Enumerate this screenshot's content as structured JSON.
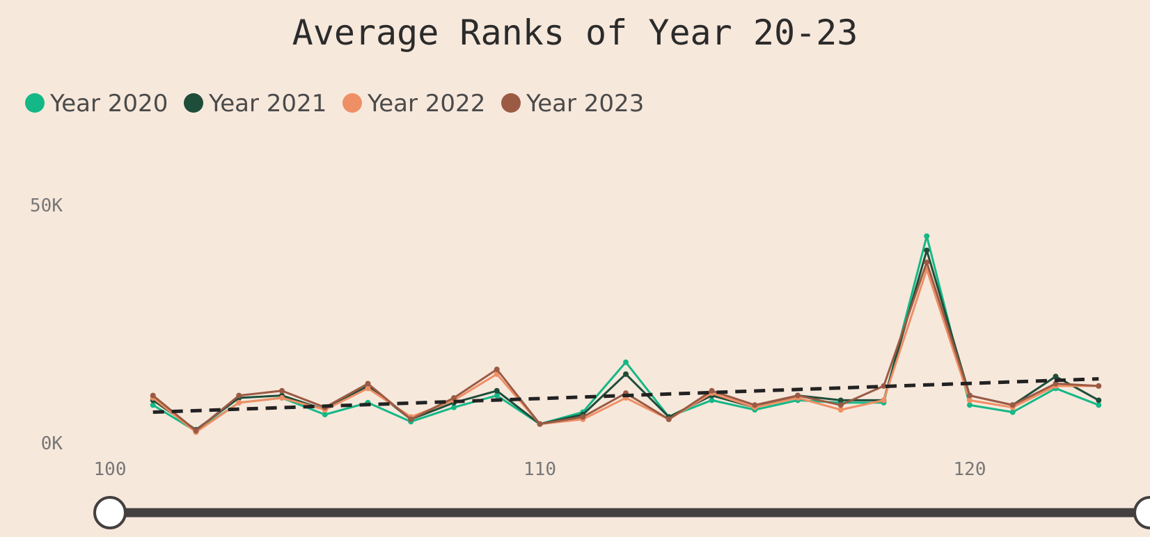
{
  "chart_data": {
    "type": "line",
    "title": "Average Ranks of Year 20-23",
    "xlabel": "",
    "ylabel": "",
    "legend_position": "top-left",
    "grid": false,
    "xlim": [
      100,
      124
    ],
    "ylim": [
      0,
      50000
    ],
    "x_ticks": [
      100,
      110,
      120
    ],
    "x_tick_labels": [
      "100",
      "110",
      "120"
    ],
    "y_ticks": [
      0,
      50000
    ],
    "y_tick_labels": [
      "0K",
      "50K"
    ],
    "x": [
      101,
      102,
      103,
      104,
      105,
      106,
      107,
      108,
      109,
      110,
      111,
      112,
      113,
      114,
      115,
      116,
      117,
      118,
      119,
      120,
      121,
      122,
      123
    ],
    "series": [
      {
        "name": "Year 2020",
        "color": "#14b886",
        "values": [
          8000,
          2500,
          8500,
          9500,
          6000,
          8500,
          4500,
          7500,
          10000,
          4000,
          6500,
          17000,
          5500,
          9000,
          7000,
          9000,
          8500,
          8500,
          43500,
          8000,
          6500,
          11500,
          8000
        ]
      },
      {
        "name": "Year 2021",
        "color": "#1e4d39",
        "values": [
          9000,
          2800,
          9500,
          10000,
          7000,
          12000,
          5000,
          8500,
          11000,
          4000,
          6000,
          14500,
          5500,
          10000,
          7500,
          10000,
          9000,
          9000,
          40500,
          10000,
          8000,
          14000,
          9000
        ]
      },
      {
        "name": "Year 2022",
        "color": "#ef8f65",
        "values": [
          9500,
          2300,
          8500,
          9500,
          7000,
          11500,
          5500,
          9000,
          14500,
          4000,
          5000,
          9500,
          5000,
          10500,
          7500,
          9500,
          7000,
          9000,
          36500,
          9000,
          7500,
          12000,
          12000
        ]
      },
      {
        "name": "Year 2023",
        "color": "#9b5a44",
        "values": [
          10000,
          2600,
          10000,
          11000,
          7500,
          12500,
          5000,
          9500,
          15500,
          4000,
          5500,
          10500,
          5000,
          11000,
          8000,
          10000,
          8000,
          12000,
          38000,
          10000,
          8000,
          12500,
          12000
        ]
      }
    ],
    "trendline": {
      "style": "dashed",
      "color": "#222222",
      "start": [
        101,
        6500
      ],
      "end": [
        123,
        13500
      ]
    },
    "range_slider": {
      "min": 100,
      "max": 124,
      "low": 100,
      "high": 124
    }
  }
}
